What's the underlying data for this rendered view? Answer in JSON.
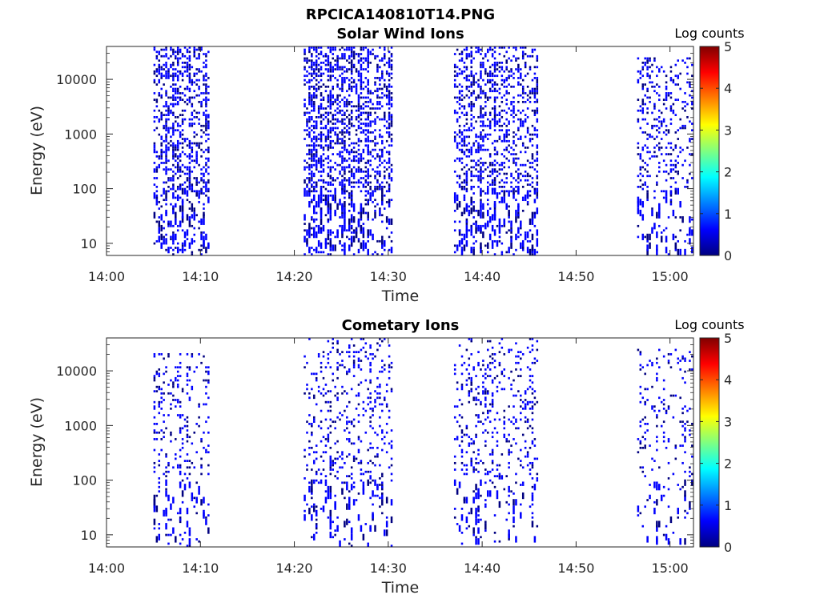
{
  "figure_title": "RPCICA140810T14.PNG",
  "colormap": [
    "#000080",
    "#0000ff",
    "#0080ff",
    "#00ffff",
    "#80ff80",
    "#ffff00",
    "#ff8000",
    "#ff0000",
    "#800000"
  ],
  "chart_data": [
    {
      "type": "heatmap",
      "title": "Solar Wind Ions",
      "xlabel": "Time",
      "ylabel": "Energy (eV)",
      "x_ticks": [
        "14:00",
        "14:10",
        "14:20",
        "14:30",
        "14:40",
        "14:50",
        "15:00"
      ],
      "y_ticks": [
        "10",
        "100",
        "1000",
        "10000"
      ],
      "y_scale": "log",
      "xlim_minutes": [
        0,
        62.5
      ],
      "ylim": [
        6,
        40000
      ],
      "colorbar": {
        "label": "Log counts",
        "range": [
          0,
          5
        ],
        "ticks": [
          "0",
          "1",
          "2",
          "3",
          "4",
          "5"
        ]
      },
      "active_intervals": [
        {
          "start_min": 5,
          "end_min": 11,
          "min_energy": 6,
          "max_energy": 38000,
          "density": 0.55
        },
        {
          "start_min": 21,
          "end_min": 30.4,
          "min_energy": 6,
          "max_energy": 40000,
          "density": 0.55
        },
        {
          "start_min": 37,
          "end_min": 46,
          "min_energy": 6,
          "max_energy": 40000,
          "density": 0.5
        },
        {
          "start_min": 56.5,
          "end_min": 62.5,
          "min_energy": 6,
          "max_energy": 25000,
          "density": 0.3
        }
      ],
      "level": 0.7
    },
    {
      "type": "heatmap",
      "title": "Cometary Ions",
      "xlabel": "Time",
      "ylabel": "Energy (eV)",
      "x_ticks": [
        "14:00",
        "14:10",
        "14:20",
        "14:30",
        "14:40",
        "14:50",
        "15:00"
      ],
      "y_ticks": [
        "10",
        "100",
        "1000",
        "10000"
      ],
      "y_scale": "log",
      "xlim_minutes": [
        0,
        62.5
      ],
      "ylim": [
        6,
        40000
      ],
      "colorbar": {
        "label": "Log counts",
        "range": [
          0,
          5
        ],
        "ticks": [
          "0",
          "1",
          "2",
          "3",
          "4",
          "5"
        ]
      },
      "active_intervals": [
        {
          "start_min": 5,
          "end_min": 11,
          "min_energy": 6,
          "max_energy": 20000,
          "density": 0.22
        },
        {
          "start_min": 21,
          "end_min": 30.4,
          "min_energy": 6,
          "max_energy": 40000,
          "density": 0.22
        },
        {
          "start_min": 37,
          "end_min": 46,
          "min_energy": 6,
          "max_energy": 40000,
          "density": 0.22
        },
        {
          "start_min": 56.5,
          "end_min": 62.5,
          "min_energy": 6,
          "max_energy": 25000,
          "density": 0.15
        }
      ],
      "level": 0.6
    }
  ]
}
